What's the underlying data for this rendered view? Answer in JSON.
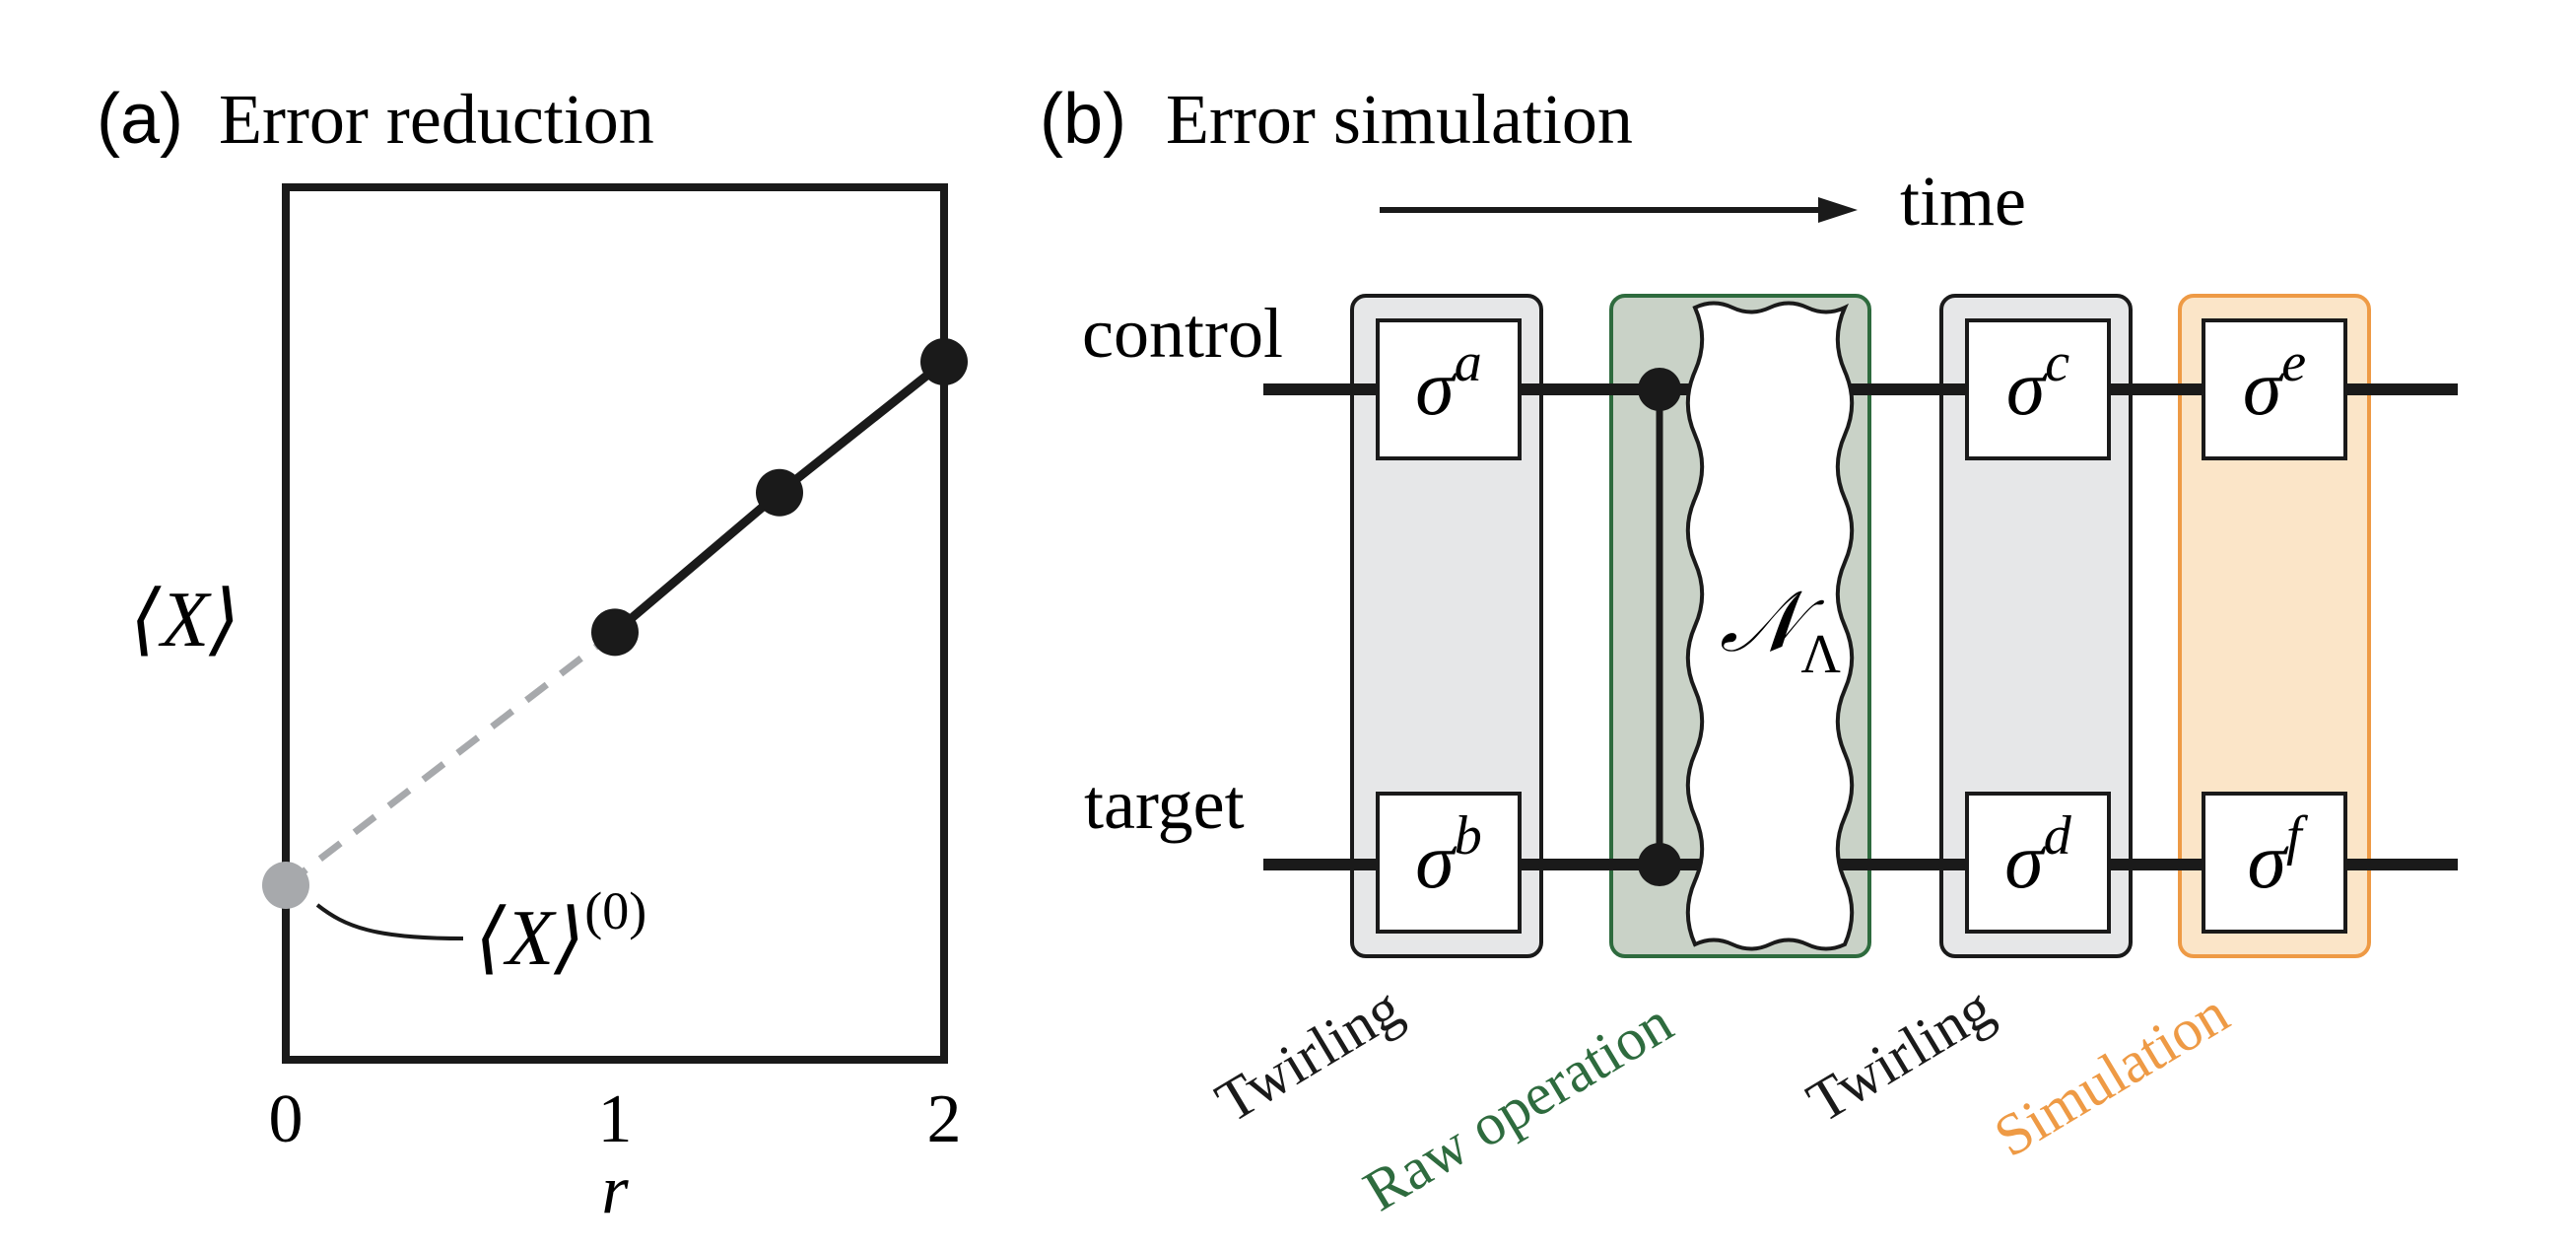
{
  "panel_a": {
    "letter": "(a)",
    "title": "Error reduction",
    "y_axis_label": "⟨X⟩",
    "x_axis_label": "r",
    "x_ticks": [
      "0",
      "1",
      "2"
    ],
    "annotation_base": "⟨X⟩",
    "annotation_sup": "(0)",
    "points": [
      {
        "r": 1,
        "level": 0.49
      },
      {
        "r": 1.5,
        "level": 0.65
      },
      {
        "r": 2,
        "level": 0.8
      }
    ],
    "extrapolated_point": {
      "r": 0,
      "level": 0.2
    },
    "colors": {
      "measured": "#1a1a1a",
      "extrapolated": "#a7a9ac"
    }
  },
  "panel_b": {
    "letter": "(b)",
    "title": "Error simulation",
    "time_label": "time",
    "wires": {
      "control": "control",
      "target": "target"
    },
    "gates": [
      {
        "base": "σ",
        "sup": "a"
      },
      {
        "base": "σ",
        "sup": "b"
      },
      {
        "base": "σ",
        "sup": "c"
      },
      {
        "base": "σ",
        "sup": "d"
      },
      {
        "base": "σ",
        "sup": "e"
      },
      {
        "base": "σ",
        "sup": "f"
      }
    ],
    "noise": {
      "base": "𝒩",
      "sub": "Λ"
    },
    "stage_labels": {
      "twirling_1": "Twirling",
      "raw_operation": "Raw operation",
      "twirling_2": "Twirling",
      "simulation": "Simulation"
    },
    "colors": {
      "twirling_fill": "#e6e7e8",
      "raw_fill": "#c9d2c7",
      "raw_text": "#2e6b3e",
      "simulation_fill": "#fbe5c8",
      "simulation_stroke": "#ee9a45",
      "simulation_text": "#ee9a45"
    }
  }
}
